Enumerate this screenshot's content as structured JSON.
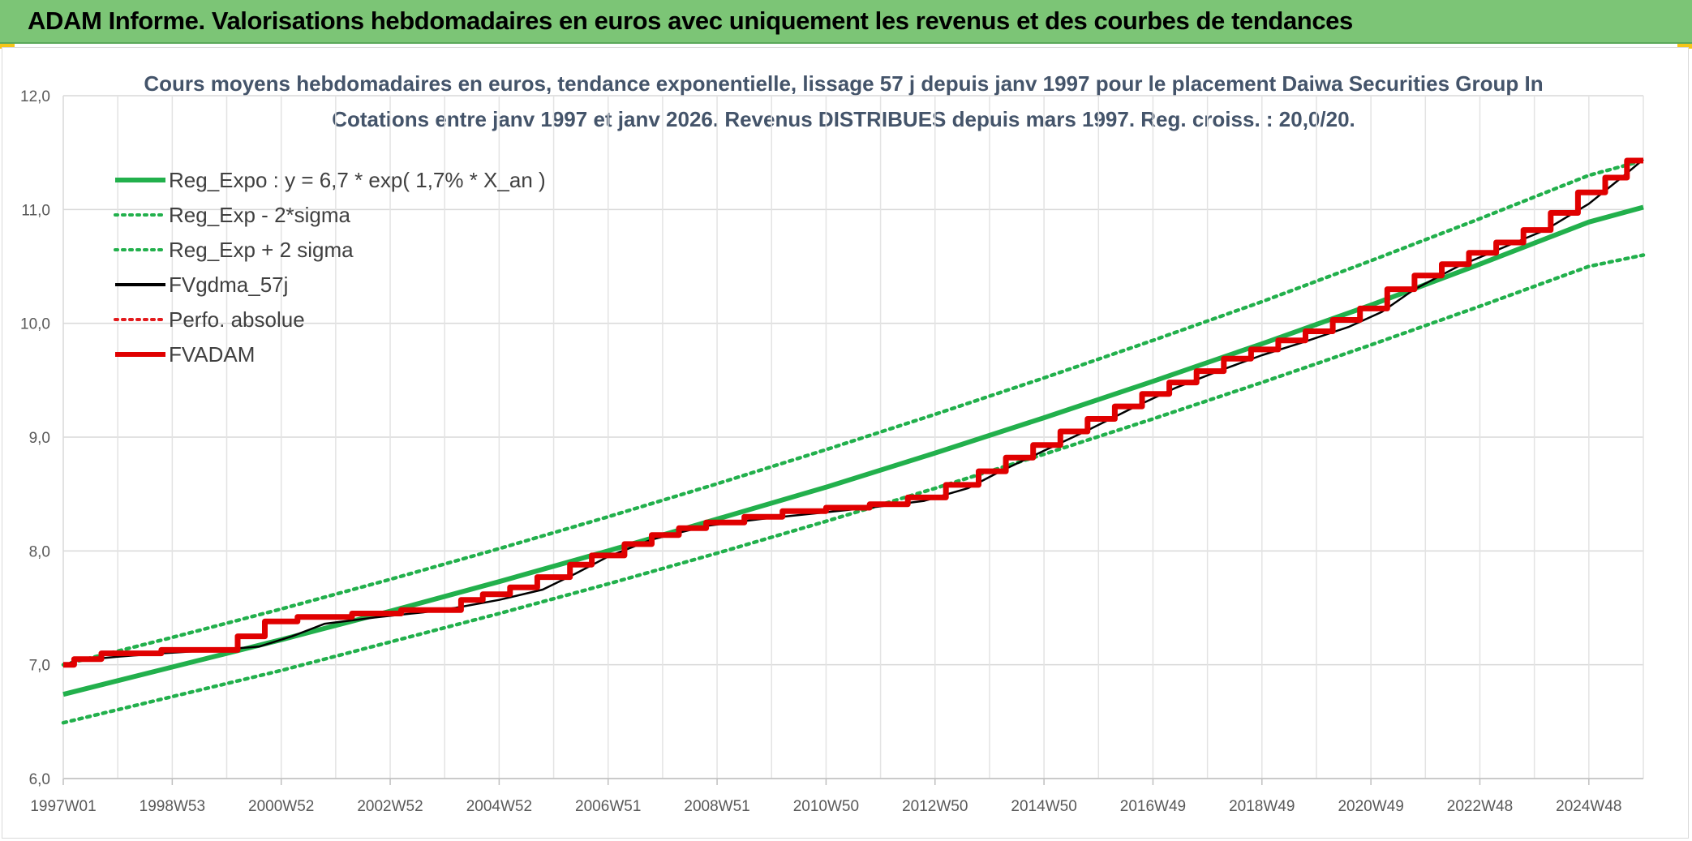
{
  "header": {
    "title": "ADAM Informe. Valorisations hebdomadaires en euros avec uniquement les revenus et des courbes de tendances"
  },
  "chart_data": {
    "type": "line",
    "title": "Cours moyens hebdomadaires en euros, tendance exponentielle, lissage 57 j depuis janv 1997 pour le placement Daiwa Securities Group In",
    "subtitle": "Cotations entre janv 1997 et janv 2026. Revenus DISTRIBUES depuis mars 1997. Reg. croiss. : 20,0/20.",
    "xlabel": "",
    "ylabel": "",
    "ylim": [
      6.0,
      12.0
    ],
    "xlim": [
      1997.0,
      2026.0
    ],
    "y_ticks": [
      "6,0",
      "7,0",
      "8,0",
      "9,0",
      "10,0",
      "11,0",
      "12,0"
    ],
    "x_ticks": [
      {
        "label": "1997W01",
        "x": 1997.0
      },
      {
        "label": "1998W53",
        "x": 1999.0
      },
      {
        "label": "2000W52",
        "x": 2001.0
      },
      {
        "label": "2002W52",
        "x": 2003.0
      },
      {
        "label": "2004W52",
        "x": 2005.0
      },
      {
        "label": "2006W51",
        "x": 2007.0
      },
      {
        "label": "2008W51",
        "x": 2009.0
      },
      {
        "label": "2010W50",
        "x": 2011.0
      },
      {
        "label": "2012W50",
        "x": 2013.0
      },
      {
        "label": "2014W50",
        "x": 2015.0
      },
      {
        "label": "2016W49",
        "x": 2017.0
      },
      {
        "label": "2018W49",
        "x": 2019.0
      },
      {
        "label": "2020W49",
        "x": 2021.0
      },
      {
        "label": "2022W48",
        "x": 2023.0
      },
      {
        "label": "2024W48",
        "x": 2025.0
      }
    ],
    "grid": true,
    "legend_position": "top-left",
    "series": [
      {
        "name": "Reg_Expo : y = 6,7 * exp( 1,7% *  X_an )",
        "color": "#22b04c",
        "style": "solid",
        "x": [
          1997,
          1999,
          2001,
          2003,
          2005,
          2007,
          2009,
          2011,
          2013,
          2015,
          2017,
          2019,
          2021,
          2023,
          2025,
          2026
        ],
        "y": [
          6.74,
          6.98,
          7.22,
          7.47,
          7.73,
          8.0,
          8.28,
          8.56,
          8.86,
          9.17,
          9.49,
          9.82,
          10.16,
          10.52,
          10.89,
          11.02
        ]
      },
      {
        "name": "Reg_Exp - 2*sigma",
        "color": "#22b04c",
        "style": "dotted",
        "x": [
          1997,
          1999,
          2001,
          2003,
          2005,
          2007,
          2009,
          2011,
          2013,
          2015,
          2017,
          2019,
          2021,
          2023,
          2025,
          2026
        ],
        "y": [
          6.49,
          6.72,
          6.95,
          7.2,
          7.45,
          7.71,
          7.98,
          8.26,
          8.55,
          8.85,
          9.16,
          9.48,
          9.81,
          10.15,
          10.5,
          10.6
        ]
      },
      {
        "name": "Reg_Exp + 2 sigma",
        "color": "#22b04c",
        "style": "dotted",
        "x": [
          1997,
          1999,
          2001,
          2003,
          2005,
          2007,
          2009,
          2011,
          2013,
          2015,
          2017,
          2019,
          2021,
          2023,
          2025,
          2026
        ],
        "y": [
          7.0,
          7.24,
          7.49,
          7.75,
          8.02,
          8.3,
          8.59,
          8.89,
          9.2,
          9.52,
          9.85,
          10.19,
          10.55,
          10.92,
          11.3,
          11.43
        ]
      },
      {
        "name": "FVgdma_57j",
        "color": "#000000",
        "style": "solid",
        "x": [
          1997.0,
          1997.3,
          1998.0,
          1998.8,
          1999.8,
          2000.6,
          2001.2,
          2001.8,
          2002.8,
          2003.6,
          2004.2,
          2005.0,
          2005.8,
          2006.4,
          2007.0,
          2007.8,
          2008.8,
          2009.8,
          2010.8,
          2011.8,
          2012.8,
          2013.6,
          2014.2,
          2015.0,
          2015.8,
          2016.6,
          2017.4,
          2018.2,
          2019.0,
          2019.8,
          2020.6,
          2021.2,
          2021.8,
          2022.6,
          2023.4,
          2024.2,
          2025.0,
          2025.6,
          2026.0
        ],
        "y": [
          7.0,
          7.04,
          7.07,
          7.1,
          7.13,
          7.16,
          7.25,
          7.36,
          7.42,
          7.46,
          7.5,
          7.57,
          7.66,
          7.8,
          7.95,
          8.1,
          8.22,
          8.28,
          8.33,
          8.38,
          8.44,
          8.55,
          8.7,
          8.88,
          9.06,
          9.25,
          9.43,
          9.58,
          9.72,
          9.84,
          9.97,
          10.1,
          10.3,
          10.5,
          10.66,
          10.82,
          11.05,
          11.28,
          11.44
        ]
      },
      {
        "name": "Perfo. absolue",
        "color": "#e31a1c",
        "style": "dotted",
        "x": [],
        "y": []
      },
      {
        "name": "FVADAM",
        "color": "#e00000",
        "style": "solid",
        "x": [
          1997.0,
          1997.2,
          1997.2,
          1997.7,
          1997.7,
          1998.8,
          1998.8,
          2000.2,
          2000.2,
          2000.7,
          2000.7,
          2001.3,
          2001.3,
          2002.3,
          2002.3,
          2003.2,
          2003.2,
          2004.3,
          2004.3,
          2004.7,
          2004.7,
          2005.2,
          2005.2,
          2005.7,
          2005.7,
          2006.3,
          2006.3,
          2006.7,
          2006.7,
          2007.3,
          2007.3,
          2007.8,
          2007.8,
          2008.3,
          2008.3,
          2008.8,
          2008.8,
          2009.5,
          2009.5,
          2010.2,
          2010.2,
          2011.0,
          2011.0,
          2011.8,
          2011.8,
          2012.5,
          2012.5,
          2013.2,
          2013.2,
          2013.8,
          2013.8,
          2014.3,
          2014.3,
          2014.8,
          2014.8,
          2015.3,
          2015.3,
          2015.8,
          2015.8,
          2016.3,
          2016.3,
          2016.8,
          2016.8,
          2017.3,
          2017.3,
          2017.8,
          2017.8,
          2018.3,
          2018.3,
          2018.8,
          2018.8,
          2019.3,
          2019.3,
          2019.8,
          2019.8,
          2020.3,
          2020.3,
          2020.8,
          2020.8,
          2021.3,
          2021.3,
          2021.8,
          2021.8,
          2022.3,
          2022.3,
          2022.8,
          2022.8,
          2023.3,
          2023.3,
          2023.8,
          2023.8,
          2024.3,
          2024.3,
          2024.8,
          2024.8,
          2025.3,
          2025.3,
          2025.7,
          2025.7,
          2026.0
        ],
        "y": [
          7.0,
          7.0,
          7.05,
          7.05,
          7.1,
          7.1,
          7.13,
          7.13,
          7.25,
          7.25,
          7.38,
          7.38,
          7.42,
          7.42,
          7.45,
          7.45,
          7.48,
          7.48,
          7.57,
          7.57,
          7.62,
          7.62,
          7.68,
          7.68,
          7.77,
          7.77,
          7.88,
          7.88,
          7.96,
          7.96,
          8.06,
          8.06,
          8.14,
          8.14,
          8.2,
          8.2,
          8.25,
          8.25,
          8.3,
          8.3,
          8.35,
          8.35,
          8.38,
          8.38,
          8.41,
          8.41,
          8.47,
          8.47,
          8.58,
          8.58,
          8.7,
          8.7,
          8.82,
          8.82,
          8.93,
          8.93,
          9.05,
          9.05,
          9.16,
          9.16,
          9.27,
          9.27,
          9.38,
          9.38,
          9.48,
          9.48,
          9.58,
          9.58,
          9.69,
          9.69,
          9.77,
          9.77,
          9.85,
          9.85,
          9.93,
          9.93,
          10.03,
          10.03,
          10.13,
          10.13,
          10.3,
          10.3,
          10.42,
          10.42,
          10.52,
          10.52,
          10.62,
          10.62,
          10.71,
          10.71,
          10.82,
          10.82,
          10.97,
          10.97,
          11.15,
          11.15,
          11.28,
          11.28,
          11.43,
          11.43
        ]
      }
    ]
  }
}
